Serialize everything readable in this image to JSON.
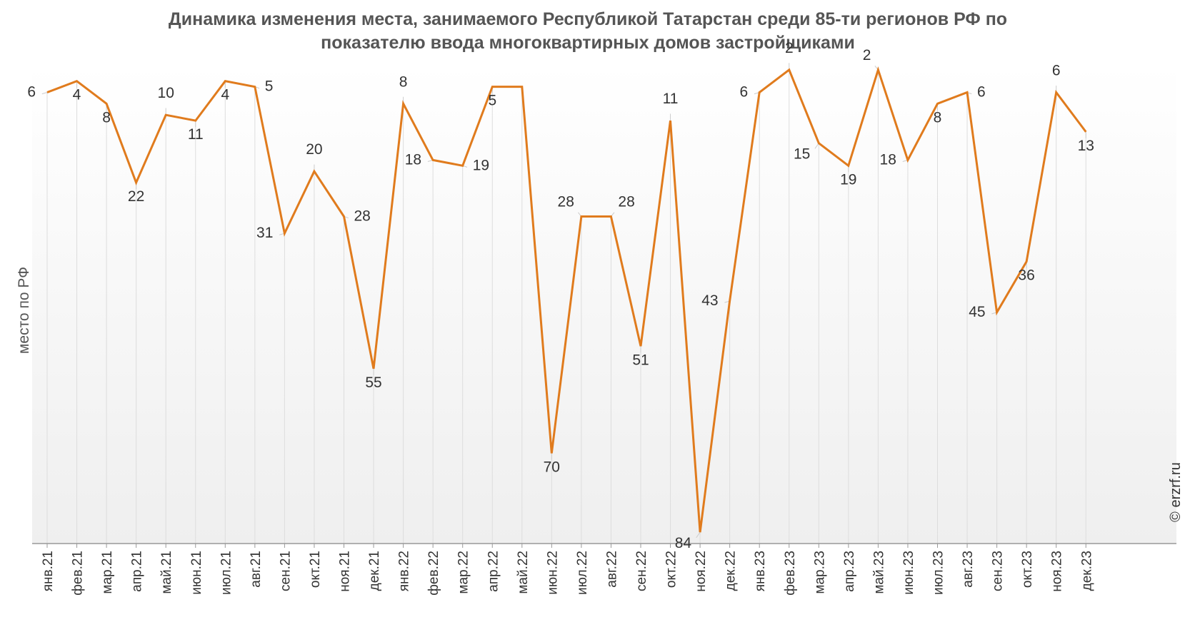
{
  "chart_data": {
    "type": "line",
    "title_lines": [
      "Динамика изменения места, занимаемого Республикой Татарстан среди 85-ти регионов РФ по",
      "показателю ввода многоквартирных домов застройщиками"
    ],
    "ylabel": "место по РФ",
    "credit": "© erzrf.ru",
    "y_inverted": true,
    "ylim": [
      1,
      86
    ],
    "grid": "vertical",
    "colors": {
      "line": "#E07B1D",
      "grid": "#dddddd",
      "axis": "#999999"
    },
    "categories": [
      "янв.21",
      "фев.21",
      "мар.21",
      "апр.21",
      "май.21",
      "июн.21",
      "июл.21",
      "авг.21",
      "сен.21",
      "окт.21",
      "ноя.21",
      "дек.21",
      "янв.22",
      "фев.22",
      "мар.22",
      "апр.22",
      "май.22",
      "июн.22",
      "июл.22",
      "авг.22",
      "сен.22",
      "окт.22",
      "ноя.22",
      "дек.22",
      "янв.23",
      "фев.23",
      "мар.23",
      "апр.23",
      "май.23",
      "июн.23",
      "июл.23",
      "авг.23",
      "сен.23",
      "окт.23",
      "ноя.23",
      "дек.23"
    ],
    "values": [
      6,
      4,
      8,
      22,
      10,
      11,
      4,
      5,
      31,
      20,
      28,
      55,
      8,
      18,
      19,
      5,
      5,
      70,
      28,
      28,
      51,
      11,
      84,
      43,
      6,
      2,
      15,
      19,
      2,
      18,
      8,
      6,
      45,
      36,
      6,
      13
    ],
    "labels": [
      "6",
      "4",
      "8",
      "22",
      "10",
      "11",
      "4",
      "5",
      "31",
      "20",
      "28",
      "55",
      "8",
      "18",
      "19",
      "5",
      "",
      "70",
      "28",
      "28",
      "51",
      "11",
      "84",
      "43",
      "6",
      "2",
      "15",
      "19",
      "2",
      "18",
      "8",
      "6",
      "45",
      "36",
      "6",
      "13"
    ],
    "label_pos": [
      "l",
      "b",
      "b",
      "b",
      "t",
      "b",
      "b",
      "r",
      "l",
      "t",
      "r",
      "b",
      "t",
      "l",
      "r",
      "b",
      "",
      "b",
      "tl",
      "tr",
      "b",
      "t",
      "bl",
      "l",
      "l",
      "t",
      "bl",
      "b",
      "tl",
      "l",
      "b",
      "r",
      "l",
      "b",
      "t",
      "b"
    ]
  }
}
